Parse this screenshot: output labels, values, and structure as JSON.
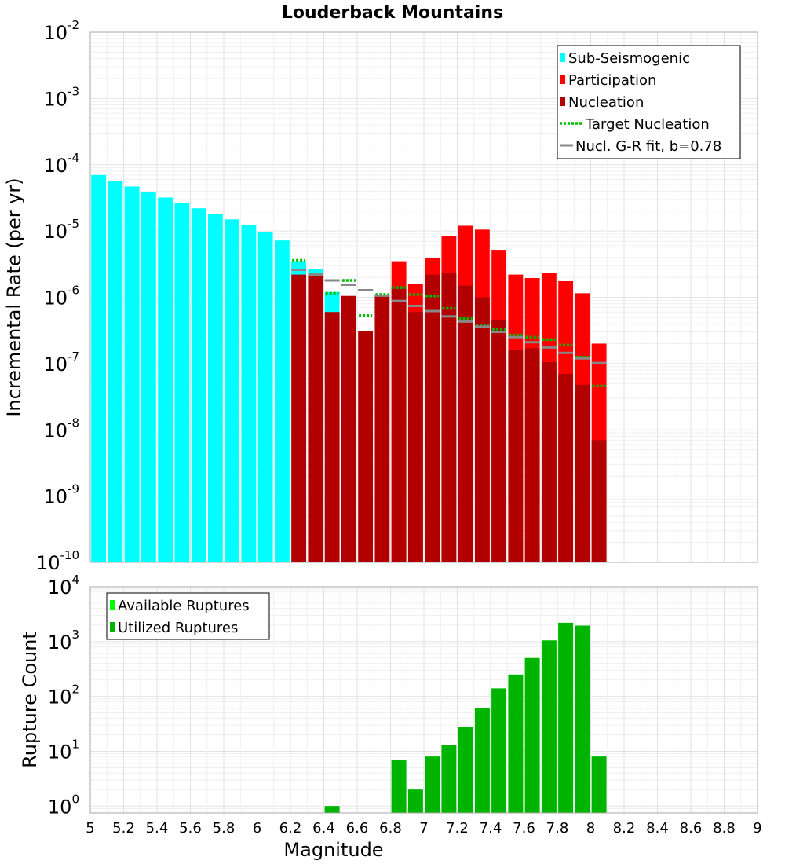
{
  "chart_data": [
    {
      "type": "bar",
      "title": "Louderback Mountains",
      "xlabel": "",
      "ylabel": "Incremental Rate (per yr)",
      "xlim": [
        5,
        9
      ],
      "ylim": [
        1e-10,
        0.01
      ],
      "yscale": "log",
      "grid": true,
      "legend_position": "top-right",
      "bin_width": 0.1,
      "colors": {
        "sub_seismogenic": "#00ffff",
        "participation": "#ff0000",
        "nucleation": "#b20000",
        "target_nucleation": "#00bb00",
        "gr_fit": "#888888"
      },
      "legend": [
        "Sub-Seismogenic",
        "Participation",
        "Nucleation",
        "Target Nucleation",
        "Nucl. G-R fit, b=0.78"
      ],
      "series": [
        {
          "name": "Sub-Seismogenic",
          "x": [
            5.05,
            5.15,
            5.25,
            5.35,
            5.45,
            5.55,
            5.65,
            5.75,
            5.85,
            5.95,
            6.05,
            6.15,
            6.25,
            6.35,
            6.45
          ],
          "values": [
            7e-05,
            5.7e-05,
            4.7e-05,
            3.9e-05,
            3.2e-05,
            2.65e-05,
            2.2e-05,
            1.8e-05,
            1.5e-05,
            1.23e-05,
            9.5e-06,
            7.2e-06,
            3.5e-06,
            2.7e-06,
            1.2e-06
          ]
        },
        {
          "name": "Participation",
          "x": [
            6.85,
            6.95,
            7.05,
            7.15,
            7.25,
            7.35,
            7.45,
            7.55,
            7.65,
            7.75,
            7.85,
            7.95,
            8.05
          ],
          "values": [
            3.5e-06,
            1.6e-06,
            3.9e-06,
            8.5e-06,
            1.2e-05,
            1.05e-05,
            5.2e-06,
            2.2e-06,
            1.95e-06,
            2.3e-06,
            1.75e-06,
            1.15e-06,
            2e-07
          ]
        },
        {
          "name": "Nucleation",
          "x": [
            6.25,
            6.35,
            6.45,
            6.55,
            6.65,
            6.75,
            6.85,
            6.95,
            7.05,
            7.15,
            7.25,
            7.35,
            7.45,
            7.55,
            7.65,
            7.75,
            7.85,
            7.95,
            8.05
          ],
          "values": [
            2.2e-06,
            2.1e-06,
            6e-07,
            1.05e-06,
            3.1e-07,
            1.1e-06,
            1.4e-06,
            6e-07,
            2.2e-06,
            2.3e-06,
            1.5e-06,
            1e-06,
            4.5e-07,
            1.6e-07,
            1.7e-07,
            1.05e-07,
            7e-08,
            4.8e-08,
            7e-09
          ]
        },
        {
          "name": "Target Nucleation",
          "x": [
            6.25,
            6.35,
            6.45,
            6.55,
            6.65,
            6.75,
            6.85,
            6.95,
            7.05,
            7.15,
            7.25,
            7.35,
            7.45,
            7.55,
            7.65,
            7.75,
            7.85,
            7.95,
            8.05
          ],
          "values": [
            3.6e-06,
            2.2e-06,
            1.15e-06,
            1.8e-06,
            5.3e-07,
            1.1e-06,
            1.4e-06,
            1.1e-06,
            1.05e-06,
            6.8e-07,
            4.8e-07,
            3.8e-07,
            3.3e-07,
            2.7e-07,
            2.5e-07,
            2.3e-07,
            1.9e-07,
            1.25e-07,
            4.6e-08
          ]
        },
        {
          "name": "Nucl. G-R fit, b=0.78",
          "x": [
            6.25,
            6.35,
            6.45,
            6.55,
            6.65,
            6.75,
            6.85,
            6.95,
            7.05,
            7.15,
            7.25,
            7.35,
            7.45,
            7.55,
            7.65,
            7.75,
            7.85,
            7.95,
            8.05
          ],
          "values": [
            2.6e-06,
            2.2e-06,
            1.8e-06,
            1.55e-06,
            1.28e-06,
            1.06e-06,
            8.8e-07,
            7.4e-07,
            6.2e-07,
            5.15e-07,
            4.3e-07,
            3.6e-07,
            3e-07,
            2.5e-07,
            2.1e-07,
            1.75e-07,
            1.45e-07,
            1.2e-07,
            1.02e-07
          ]
        }
      ]
    },
    {
      "type": "bar",
      "title": "",
      "xlabel": "Magnitude",
      "ylabel": "Rupture Count",
      "xlim": [
        5,
        9
      ],
      "ylim": [
        0.75,
        10000
      ],
      "yscale": "log",
      "grid": true,
      "legend_position": "top-left",
      "bin_width": 0.1,
      "x_ticks": [
        "5",
        "5.2",
        "5.4",
        "5.6",
        "5.8",
        "6",
        "6.2",
        "6.4",
        "6.6",
        "6.8",
        "7",
        "7.2",
        "7.4",
        "7.6",
        "7.8",
        "8",
        "8.2",
        "8.4",
        "8.6",
        "8.8",
        "9"
      ],
      "colors": {
        "available": "#00ff00",
        "utilized": "#00b400"
      },
      "legend": [
        "Available Ruptures",
        "Utilized Ruptures"
      ],
      "series": [
        {
          "name": "Available Ruptures",
          "x": [
            6.45,
            6.85,
            6.95,
            7.05,
            7.15,
            7.25,
            7.35,
            7.45,
            7.55,
            7.65,
            7.75,
            7.85,
            7.95,
            8.05
          ],
          "values": [
            1,
            7,
            2,
            8,
            13,
            28,
            62,
            140,
            250,
            500,
            1050,
            2200,
            1950,
            8
          ]
        },
        {
          "name": "Utilized Ruptures",
          "x": [
            6.45,
            6.85,
            6.95,
            7.05,
            7.15,
            7.25,
            7.35,
            7.45,
            7.55,
            7.65,
            7.75,
            7.85,
            7.95,
            8.05
          ],
          "values": [
            1,
            7,
            2,
            8,
            13,
            28,
            62,
            140,
            250,
            500,
            1050,
            2200,
            1950,
            8
          ]
        }
      ]
    }
  ]
}
